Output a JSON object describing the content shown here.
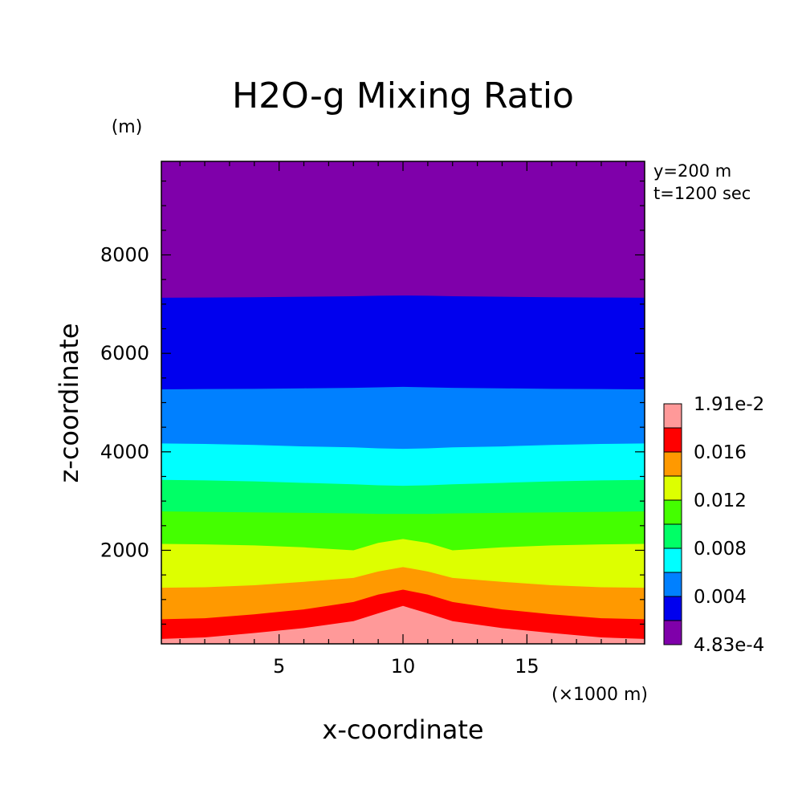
{
  "chart_data": {
    "type": "contour",
    "title": "H2O-g Mixing Ratio",
    "xlabel": "x-coordinate",
    "ylabel": "z-coordinate",
    "x_unit": "(×1000 m)",
    "y_unit": "(m)",
    "annotations": [
      "y=200 m",
      "t=1200 sec"
    ],
    "xlim": [
      0.25,
      19.75
    ],
    "ylim": [
      100,
      9900
    ],
    "x_ticks": [
      5,
      10,
      15
    ],
    "y_ticks": [
      2000,
      4000,
      6000,
      8000
    ],
    "grid": false,
    "levels": [
      0.000483,
      0.002,
      0.004,
      0.006,
      0.008,
      0.01,
      0.012,
      0.014,
      0.016,
      0.018,
      0.0191
    ],
    "colorbar": {
      "placement": "right",
      "labels": [
        "1.91e-2",
        "0.016",
        "0.012",
        "0.008",
        "0.004",
        "4.83e-4"
      ],
      "colors": [
        "#7f00aa",
        "#0000ee",
        "#0080ff",
        "#00ffff",
        "#00ff66",
        "#44ff00",
        "#ddff00",
        "#ff9900",
        "#ff0000",
        "#ff9999"
      ]
    },
    "boundaries_x": [
      0.25,
      2,
      4,
      6,
      8,
      9,
      10,
      11,
      12,
      14,
      16,
      18,
      19.75
    ],
    "boundaries_z": [
      [
        7130,
        7135,
        7140,
        7150,
        7160,
        7170,
        7175,
        7170,
        7160,
        7150,
        7140,
        7135,
        7130
      ],
      [
        5270,
        5275,
        5280,
        5290,
        5300,
        5310,
        5320,
        5310,
        5300,
        5290,
        5280,
        5275,
        5270
      ],
      [
        4170,
        4160,
        4140,
        4110,
        4090,
        4070,
        4060,
        4070,
        4090,
        4110,
        4140,
        4160,
        4170
      ],
      [
        3430,
        3420,
        3400,
        3370,
        3340,
        3320,
        3310,
        3320,
        3340,
        3370,
        3400,
        3420,
        3430
      ],
      [
        2790,
        2780,
        2770,
        2760,
        2750,
        2740,
        2740,
        2740,
        2750,
        2760,
        2770,
        2780,
        2790
      ],
      [
        2130,
        2120,
        2100,
        2060,
        2000,
        2150,
        2230,
        2150,
        2000,
        2060,
        2100,
        2120,
        2130
      ],
      [
        1240,
        1250,
        1290,
        1360,
        1440,
        1570,
        1660,
        1570,
        1440,
        1360,
        1290,
        1250,
        1240
      ],
      [
        600,
        620,
        700,
        800,
        950,
        1100,
        1200,
        1100,
        950,
        800,
        700,
        620,
        600
      ],
      [
        200,
        230,
        320,
        420,
        560,
        720,
        870,
        720,
        560,
        420,
        320,
        230,
        200
      ]
    ]
  }
}
